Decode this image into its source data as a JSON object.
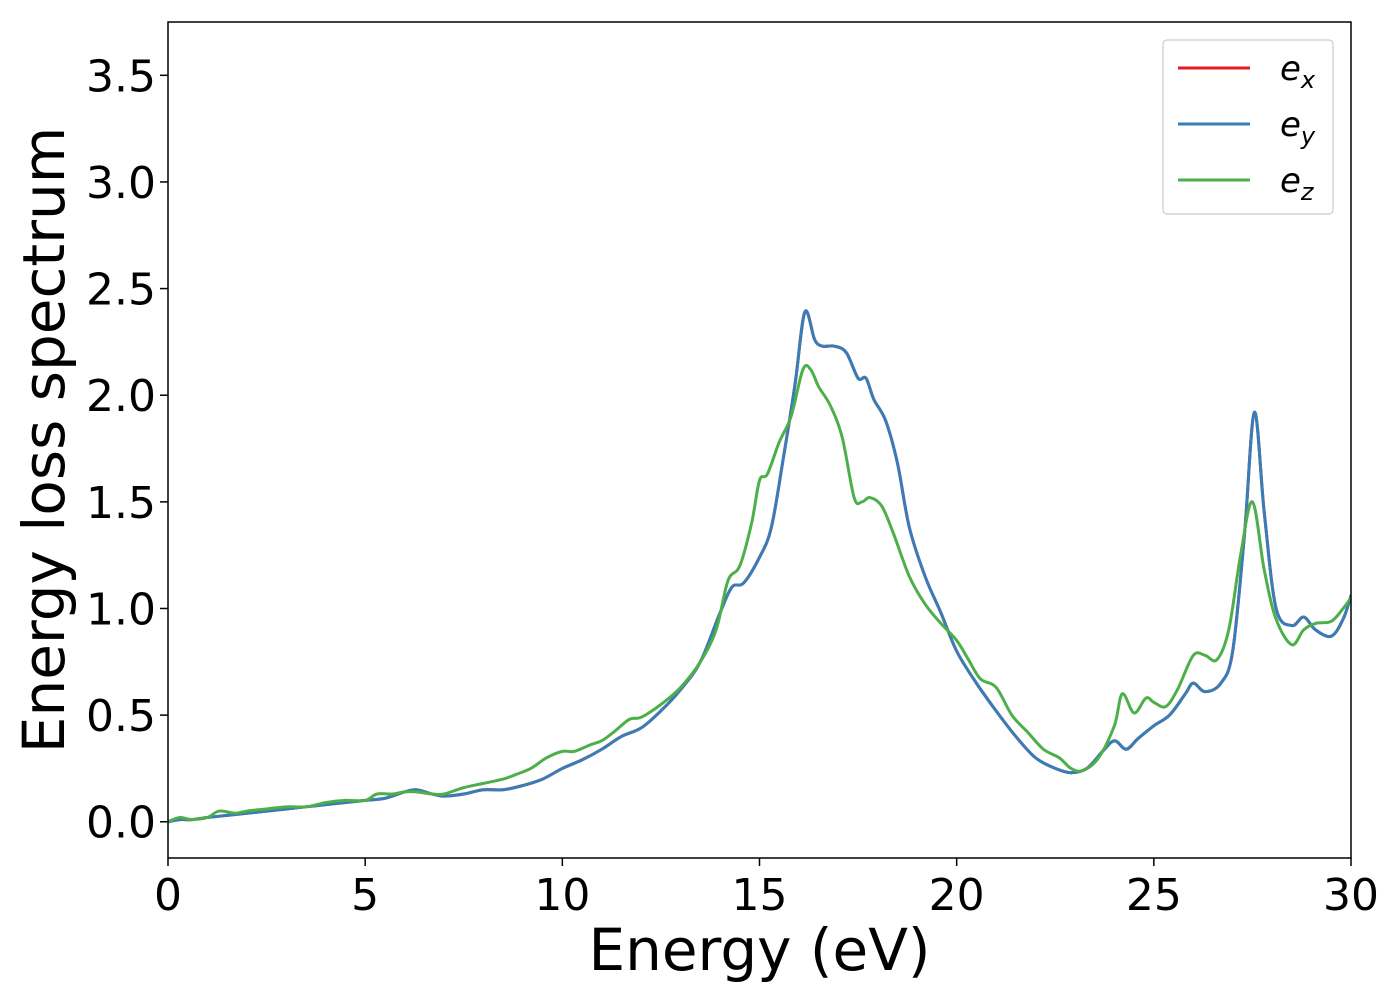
{
  "chart_data": {
    "type": "line",
    "title": "",
    "xlabel": "Energy (eV)",
    "ylabel": "Energy loss spectrum",
    "xlim": [
      0,
      30
    ],
    "ylim": [
      -0.17,
      3.75
    ],
    "xticks": [
      0,
      5,
      10,
      15,
      20,
      25,
      30
    ],
    "xtick_labels": [
      "0",
      "5",
      "10",
      "15",
      "20",
      "25",
      "30"
    ],
    "yticks": [
      0.0,
      0.5,
      1.0,
      1.5,
      2.0,
      2.5,
      3.0,
      3.5
    ],
    "ytick_labels": [
      "0.0",
      "0.5",
      "1.0",
      "1.5",
      "2.0",
      "2.5",
      "3.0",
      "3.5"
    ],
    "grid": false,
    "legend_position": "top-right",
    "series": [
      {
        "name": "e_x",
        "legend_base": "e",
        "legend_sub": "x",
        "color": "#e41a1c",
        "x": [
          0,
          0.3,
          0.6,
          1,
          1.5,
          2,
          2.5,
          3,
          3.5,
          4,
          4.5,
          5,
          5.5,
          6,
          6.3,
          6.7,
          7,
          7.5,
          8,
          8.5,
          9,
          9.5,
          10,
          10.5,
          11,
          11.5,
          12,
          12.5,
          13,
          13.5,
          14,
          14.3,
          14.6,
          15,
          15.3,
          15.6,
          15.9,
          16.15,
          16.4,
          16.6,
          16.9,
          17.2,
          17.5,
          17.7,
          17.9,
          18.2,
          18.5,
          18.8,
          19.2,
          19.6,
          20,
          20.5,
          21,
          21.5,
          22,
          22.5,
          22.9,
          23.3,
          23.7,
          24,
          24.3,
          24.6,
          25,
          25.4,
          25.8,
          26,
          26.3,
          26.7,
          27,
          27.3,
          27.55,
          27.8,
          28.1,
          28.5,
          28.8,
          29.1,
          29.5,
          29.8,
          30
        ],
        "y": [
          0.0,
          0.01,
          0.01,
          0.02,
          0.03,
          0.04,
          0.05,
          0.06,
          0.07,
          0.08,
          0.09,
          0.1,
          0.11,
          0.14,
          0.15,
          0.13,
          0.12,
          0.13,
          0.15,
          0.15,
          0.17,
          0.2,
          0.25,
          0.29,
          0.34,
          0.4,
          0.44,
          0.52,
          0.62,
          0.75,
          0.98,
          1.1,
          1.12,
          1.24,
          1.38,
          1.7,
          2.05,
          2.39,
          2.26,
          2.23,
          2.23,
          2.2,
          2.08,
          2.08,
          1.98,
          1.88,
          1.68,
          1.38,
          1.15,
          0.98,
          0.8,
          0.65,
          0.52,
          0.4,
          0.3,
          0.25,
          0.23,
          0.25,
          0.33,
          0.38,
          0.34,
          0.39,
          0.45,
          0.5,
          0.6,
          0.65,
          0.61,
          0.65,
          0.8,
          1.35,
          1.92,
          1.45,
          1.0,
          0.92,
          0.96,
          0.9,
          0.87,
          0.95,
          1.06
        ]
      },
      {
        "name": "e_y",
        "legend_base": "e",
        "legend_sub": "y",
        "color": "#377eb8",
        "x": [
          0,
          0.3,
          0.6,
          1,
          1.5,
          2,
          2.5,
          3,
          3.5,
          4,
          4.5,
          5,
          5.5,
          6,
          6.3,
          6.7,
          7,
          7.5,
          8,
          8.5,
          9,
          9.5,
          10,
          10.5,
          11,
          11.5,
          12,
          12.5,
          13,
          13.5,
          14,
          14.3,
          14.6,
          15,
          15.3,
          15.6,
          15.9,
          16.15,
          16.4,
          16.6,
          16.9,
          17.2,
          17.5,
          17.7,
          17.9,
          18.2,
          18.5,
          18.8,
          19.2,
          19.6,
          20,
          20.5,
          21,
          21.5,
          22,
          22.5,
          22.9,
          23.3,
          23.7,
          24,
          24.3,
          24.6,
          25,
          25.4,
          25.8,
          26,
          26.3,
          26.7,
          27,
          27.3,
          27.55,
          27.8,
          28.1,
          28.5,
          28.8,
          29.1,
          29.5,
          29.8,
          30
        ],
        "y": [
          0.0,
          0.01,
          0.01,
          0.02,
          0.03,
          0.04,
          0.05,
          0.06,
          0.07,
          0.08,
          0.09,
          0.1,
          0.11,
          0.14,
          0.15,
          0.13,
          0.12,
          0.13,
          0.15,
          0.15,
          0.17,
          0.2,
          0.25,
          0.29,
          0.34,
          0.4,
          0.44,
          0.52,
          0.62,
          0.75,
          0.98,
          1.1,
          1.12,
          1.24,
          1.38,
          1.7,
          2.05,
          2.39,
          2.26,
          2.23,
          2.23,
          2.2,
          2.08,
          2.08,
          1.98,
          1.88,
          1.68,
          1.38,
          1.15,
          0.98,
          0.8,
          0.65,
          0.52,
          0.4,
          0.3,
          0.25,
          0.23,
          0.25,
          0.33,
          0.38,
          0.34,
          0.39,
          0.45,
          0.5,
          0.6,
          0.65,
          0.61,
          0.65,
          0.8,
          1.35,
          1.92,
          1.45,
          1.0,
          0.92,
          0.96,
          0.9,
          0.87,
          0.95,
          1.06
        ]
      },
      {
        "name": "e_z",
        "legend_base": "e",
        "legend_sub": "z",
        "color": "#4daf4a",
        "x": [
          0,
          0.3,
          0.6,
          1,
          1.3,
          1.7,
          2,
          2.5,
          3,
          3.5,
          4,
          4.5,
          5,
          5.3,
          5.7,
          6,
          6.3,
          6.7,
          7,
          7.5,
          8,
          8.5,
          8.8,
          9.2,
          9.6,
          10,
          10.3,
          10.7,
          11,
          11.3,
          11.7,
          12,
          12.5,
          13,
          13.5,
          13.9,
          14.2,
          14.5,
          14.8,
          15,
          15.2,
          15.5,
          15.8,
          16.1,
          16.3,
          16.5,
          16.8,
          17.1,
          17.4,
          17.6,
          17.8,
          18.1,
          18.4,
          18.8,
          19.2,
          19.6,
          20,
          20.3,
          20.6,
          21,
          21.4,
          21.8,
          22.2,
          22.6,
          22.9,
          23.2,
          23.6,
          24,
          24.2,
          24.5,
          24.8,
          25,
          25.3,
          25.6,
          26,
          26.3,
          26.6,
          26.9,
          27.2,
          27.5,
          27.8,
          28.1,
          28.5,
          28.8,
          29.1,
          29.5,
          29.8,
          30
        ],
        "y": [
          0.0,
          0.02,
          0.01,
          0.02,
          0.05,
          0.04,
          0.05,
          0.06,
          0.07,
          0.07,
          0.09,
          0.1,
          0.1,
          0.13,
          0.13,
          0.14,
          0.14,
          0.13,
          0.13,
          0.16,
          0.18,
          0.2,
          0.22,
          0.25,
          0.3,
          0.33,
          0.33,
          0.36,
          0.38,
          0.42,
          0.48,
          0.49,
          0.55,
          0.63,
          0.75,
          0.9,
          1.13,
          1.2,
          1.4,
          1.6,
          1.63,
          1.78,
          1.9,
          2.12,
          2.12,
          2.04,
          1.95,
          1.8,
          1.52,
          1.5,
          1.52,
          1.48,
          1.35,
          1.15,
          1.02,
          0.93,
          0.85,
          0.76,
          0.67,
          0.63,
          0.5,
          0.42,
          0.34,
          0.3,
          0.25,
          0.24,
          0.3,
          0.45,
          0.6,
          0.51,
          0.58,
          0.56,
          0.54,
          0.62,
          0.78,
          0.78,
          0.76,
          0.9,
          1.25,
          1.5,
          1.18,
          0.95,
          0.83,
          0.9,
          0.93,
          0.94,
          1.0,
          1.05
        ]
      }
    ]
  }
}
